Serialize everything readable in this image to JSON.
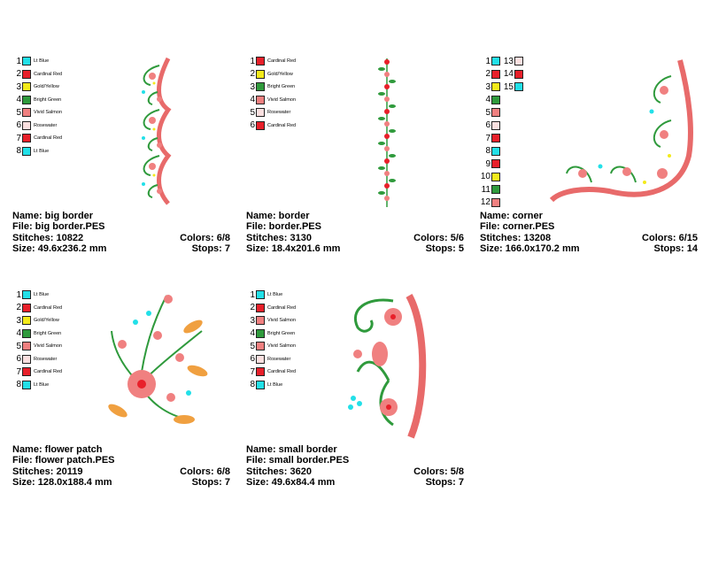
{
  "designs": [
    {
      "id": "big-border",
      "colors": [
        {
          "n": "1",
          "name": "Lt Blue",
          "hex": "#22e0e8"
        },
        {
          "n": "2",
          "name": "Cardinal Red",
          "hex": "#e8202a"
        },
        {
          "n": "3",
          "name": "Gold/Yellow",
          "hex": "#f3ea1b"
        },
        {
          "n": "4",
          "name": "Bright Green",
          "hex": "#2f9a3c"
        },
        {
          "n": "5",
          "name": "Vivid Salmon",
          "hex": "#f08080"
        },
        {
          "n": "6",
          "name": "Rosewater",
          "hex": "#fbe0e0"
        },
        {
          "n": "7",
          "name": "Cardinal Red",
          "hex": "#e8202a"
        },
        {
          "n": "8",
          "name": "Lt Blue",
          "hex": "#22e0e8"
        }
      ],
      "name_line": "Name: big border",
      "file_line": "File: big border.PES",
      "stitches": "Stitches: 10822",
      "colors_count": "Colors: 6/8",
      "size": "Size: 49.6x236.2 mm",
      "stops": "Stops: 7"
    },
    {
      "id": "border",
      "colors": [
        {
          "n": "1",
          "name": "Cardinal Red",
          "hex": "#e8202a"
        },
        {
          "n": "2",
          "name": "Gold/Yellow",
          "hex": "#f3ea1b"
        },
        {
          "n": "3",
          "name": "Bright Green",
          "hex": "#2f9a3c"
        },
        {
          "n": "4",
          "name": "Vivid Salmon",
          "hex": "#f08080"
        },
        {
          "n": "5",
          "name": "Rosewater",
          "hex": "#fbe0e0"
        },
        {
          "n": "6",
          "name": "Cardinal Red",
          "hex": "#e8202a"
        }
      ],
      "name_line": "Name: border",
      "file_line": "File: border.PES",
      "stitches": "Stitches: 3130",
      "colors_count": "Colors: 5/6",
      "size": "Size: 18.4x201.6 mm",
      "stops": "Stops: 5"
    },
    {
      "id": "corner",
      "colors_col1": [
        {
          "n": "1",
          "hex": "#22e0e8"
        },
        {
          "n": "2",
          "hex": "#e8202a"
        },
        {
          "n": "3",
          "hex": "#f3ea1b"
        },
        {
          "n": "4",
          "hex": "#2f9a3c"
        },
        {
          "n": "5",
          "hex": "#f08080"
        },
        {
          "n": "6",
          "hex": "#fbe0e0"
        },
        {
          "n": "7",
          "hex": "#e8202a"
        },
        {
          "n": "8",
          "hex": "#22e0e8"
        },
        {
          "n": "9",
          "hex": "#e8202a"
        },
        {
          "n": "10",
          "hex": "#f3ea1b"
        },
        {
          "n": "11",
          "hex": "#2f9a3c"
        },
        {
          "n": "12",
          "hex": "#f08080"
        }
      ],
      "colors_col2": [
        {
          "n": "13",
          "hex": "#fbe0e0"
        },
        {
          "n": "14",
          "hex": "#e8202a"
        },
        {
          "n": "15",
          "hex": "#22e0e8"
        }
      ],
      "name_line": "Name: corner",
      "file_line": "File: corner.PES",
      "stitches": "Stitches: 13208",
      "colors_count": "Colors: 6/15",
      "size": "Size: 166.0x170.2 mm",
      "stops": "Stops: 14"
    },
    {
      "id": "flower-patch",
      "colors": [
        {
          "n": "1",
          "name": "Lt Blue",
          "hex": "#22e0e8"
        },
        {
          "n": "2",
          "name": "Cardinal Red",
          "hex": "#e8202a"
        },
        {
          "n": "3",
          "name": "Gold/Yellow",
          "hex": "#f3ea1b"
        },
        {
          "n": "4",
          "name": "Bright Green",
          "hex": "#2f9a3c"
        },
        {
          "n": "5",
          "name": "Vivid Salmon",
          "hex": "#f08080"
        },
        {
          "n": "6",
          "name": "Rosewater",
          "hex": "#fbe0e0"
        },
        {
          "n": "7",
          "name": "Cardinal Red",
          "hex": "#e8202a"
        },
        {
          "n": "8",
          "name": "Lt Blue",
          "hex": "#22e0e8"
        }
      ],
      "name_line": "Name: flower patch",
      "file_line": "File: flower patch.PES",
      "stitches": "Stitches: 20119",
      "colors_count": "Colors: 6/8",
      "size": "Size: 128.0x188.4 mm",
      "stops": "Stops: 7"
    },
    {
      "id": "small-border",
      "colors": [
        {
          "n": "1",
          "name": "Lt Blue",
          "hex": "#22e0e8"
        },
        {
          "n": "2",
          "name": "Cardinal Red",
          "hex": "#e8202a"
        },
        {
          "n": "3",
          "name": "Vivid Salmon",
          "hex": "#f08080"
        },
        {
          "n": "4",
          "name": "Bright Green",
          "hex": "#2f9a3c"
        },
        {
          "n": "5",
          "name": "Vivid Salmon",
          "hex": "#f08080"
        },
        {
          "n": "6",
          "name": "Rosewater",
          "hex": "#fbe0e0"
        },
        {
          "n": "7",
          "name": "Cardinal Red",
          "hex": "#e8202a"
        },
        {
          "n": "8",
          "name": "Lt Blue",
          "hex": "#22e0e8"
        }
      ],
      "name_line": "Name: small border",
      "file_line": "File: small border.PES",
      "stitches": "Stitches: 3620",
      "colors_count": "Colors: 5/8",
      "size": "Size: 49.6x84.4 mm",
      "stops": "Stops: 7"
    }
  ]
}
